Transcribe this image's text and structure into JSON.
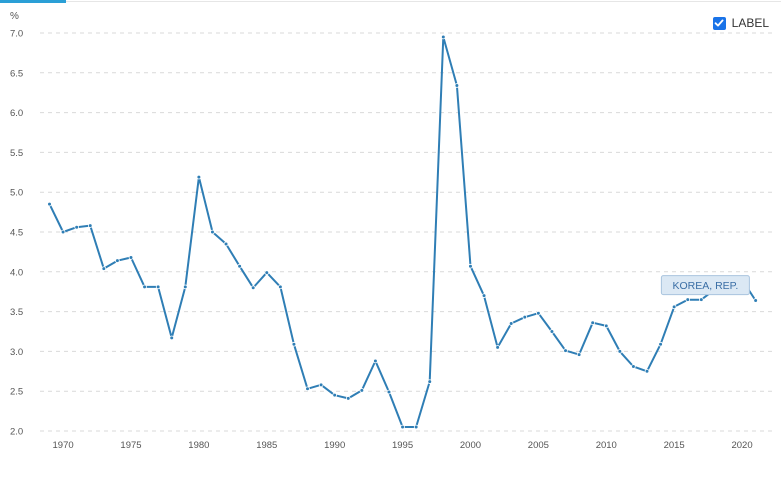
{
  "legend": {
    "label": "LABEL",
    "checked": true
  },
  "chart_data": {
    "type": "line",
    "ylabel": "%",
    "xlabel": "",
    "ylim": [
      2.0,
      7.0
    ],
    "xlim": [
      1968.3,
      2022.5
    ],
    "y_ticks": [
      "2.0",
      "2.5",
      "3.0",
      "3.5",
      "4.0",
      "4.5",
      "5.0",
      "5.5",
      "6.0",
      "6.5",
      "7.0"
    ],
    "x_ticks": [
      "1970",
      "1975",
      "1980",
      "1985",
      "1990",
      "1995",
      "2000",
      "2005",
      "2010",
      "2015",
      "2020"
    ],
    "grid": true,
    "legend_position": "top-right",
    "color": "#2f7eb5",
    "series": [
      {
        "name": "KOREA, REP.",
        "x": [
          1969,
          1970,
          1971,
          1972,
          1973,
          1974,
          1975,
          1976,
          1977,
          1978,
          1979,
          1980,
          1981,
          1982,
          1983,
          1984,
          1985,
          1986,
          1987,
          1988,
          1989,
          1990,
          1991,
          1992,
          1993,
          1994,
          1995,
          1996,
          1997,
          1998,
          1999,
          2000,
          2001,
          2002,
          2003,
          2004,
          2005,
          2006,
          2007,
          2008,
          2009,
          2010,
          2011,
          2012,
          2013,
          2014,
          2015,
          2016,
          2017,
          2018,
          2019,
          2020,
          2021
        ],
        "values": [
          4.85,
          4.5,
          4.56,
          4.58,
          4.04,
          4.14,
          4.18,
          3.81,
          3.81,
          3.17,
          3.81,
          5.19,
          4.5,
          4.35,
          4.07,
          3.8,
          3.99,
          3.81,
          3.09,
          2.53,
          2.58,
          2.45,
          2.41,
          2.51,
          2.88,
          2.49,
          2.05,
          2.05,
          2.62,
          6.95,
          6.34,
          4.07,
          3.7,
          3.05,
          3.35,
          3.43,
          3.48,
          3.25,
          3.01,
          2.96,
          3.36,
          3.32,
          3.0,
          2.81,
          2.75,
          3.09,
          3.56,
          3.65,
          3.65,
          3.78,
          3.8,
          3.9,
          3.64
        ]
      }
    ],
    "annotations": [
      {
        "text": "KOREA, REP.",
        "x": 2017.3,
        "y": 3.82
      }
    ]
  }
}
